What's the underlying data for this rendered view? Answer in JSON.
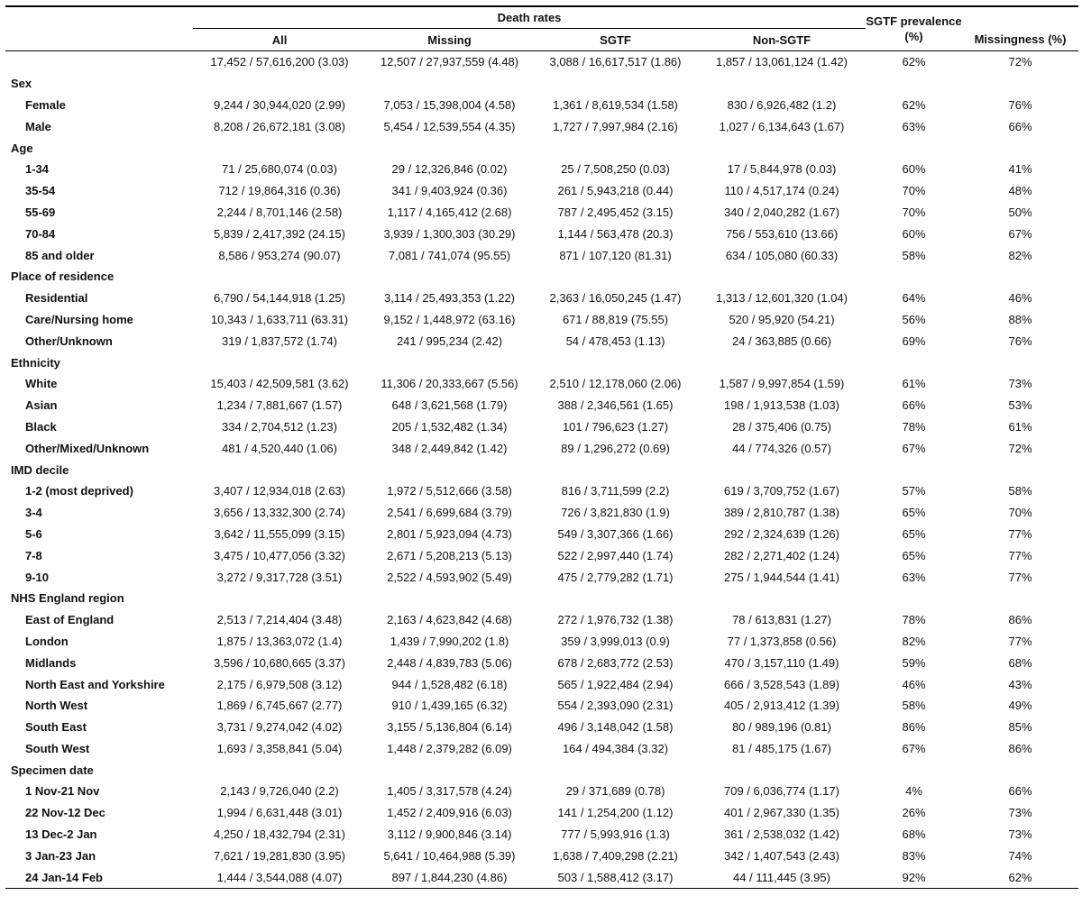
{
  "table": {
    "group_header": "Death rates",
    "columns": [
      "All",
      "Missing",
      "SGTF",
      "Non-SGTF",
      "SGTF prevalence (%)",
      "Missingness (%)"
    ],
    "total": [
      "17,452 / 57,616,200 (3.03)",
      "12,507 / 27,937,559 (4.48)",
      "3,088 / 16,617,517 (1.86)",
      "1,857 / 13,061,124 (1.42)",
      "62%",
      "72%"
    ],
    "sections": [
      {
        "title": "Sex",
        "rows": [
          {
            "label": "Female",
            "cells": [
              "9,244 / 30,944,020 (2.99)",
              "7,053 / 15,398,004 (4.58)",
              "1,361 / 8,619,534 (1.58)",
              "830 / 6,926,482 (1.2)",
              "62%",
              "76%"
            ]
          },
          {
            "label": "Male",
            "cells": [
              "8,208 / 26,672,181 (3.08)",
              "5,454 / 12,539,554 (4.35)",
              "1,727 / 7,997,984 (2.16)",
              "1,027 / 6,134,643 (1.67)",
              "63%",
              "66%"
            ]
          }
        ]
      },
      {
        "title": "Age",
        "rows": [
          {
            "label": "1-34",
            "cells": [
              "71 / 25,680,074 (0.03)",
              "29 / 12,326,846 (0.02)",
              "25 / 7,508,250 (0.03)",
              "17 / 5,844,978 (0.03)",
              "60%",
              "41%"
            ]
          },
          {
            "label": "35-54",
            "cells": [
              "712 / 19,864,316 (0.36)",
              "341 / 9,403,924 (0.36)",
              "261 / 5,943,218 (0.44)",
              "110 / 4,517,174 (0.24)",
              "70%",
              "48%"
            ]
          },
          {
            "label": "55-69",
            "cells": [
              "2,244 / 8,701,146 (2.58)",
              "1,117 / 4,165,412 (2.68)",
              "787 / 2,495,452 (3.15)",
              "340 / 2,040,282 (1.67)",
              "70%",
              "50%"
            ]
          },
          {
            "label": "70-84",
            "cells": [
              "5,839 / 2,417,392 (24.15)",
              "3,939 / 1,300,303 (30.29)",
              "1,144 / 563,478 (20.3)",
              "756 / 553,610 (13.66)",
              "60%",
              "67%"
            ]
          },
          {
            "label": "85 and older",
            "cells": [
              "8,586 / 953,274 (90.07)",
              "7,081 / 741,074 (95.55)",
              "871 / 107,120 (81.31)",
              "634 / 105,080 (60.33)",
              "58%",
              "82%"
            ]
          }
        ]
      },
      {
        "title": "Place of residence",
        "rows": [
          {
            "label": "Residential",
            "cells": [
              "6,790 / 54,144,918 (1.25)",
              "3,114 / 25,493,353 (1.22)",
              "2,363 / 16,050,245 (1.47)",
              "1,313 / 12,601,320 (1.04)",
              "64%",
              "46%"
            ]
          },
          {
            "label": "Care/Nursing home",
            "cells": [
              "10,343 / 1,633,711 (63.31)",
              "9,152 / 1,448,972 (63.16)",
              "671 / 88,819 (75.55)",
              "520 / 95,920 (54.21)",
              "56%",
              "88%"
            ]
          },
          {
            "label": "Other/Unknown",
            "cells": [
              "319 / 1,837,572 (1.74)",
              "241 / 995,234 (2.42)",
              "54 / 478,453 (1.13)",
              "24 / 363,885 (0.66)",
              "69%",
              "76%"
            ]
          }
        ]
      },
      {
        "title": "Ethnicity",
        "rows": [
          {
            "label": "White",
            "cells": [
              "15,403 / 42,509,581 (3.62)",
              "11,306 / 20,333,667 (5.56)",
              "2,510 / 12,178,060 (2.06)",
              "1,587 / 9,997,854 (1.59)",
              "61%",
              "73%"
            ]
          },
          {
            "label": "Asian",
            "cells": [
              "1,234 / 7,881,667 (1.57)",
              "648 / 3,621,568 (1.79)",
              "388 / 2,346,561 (1.65)",
              "198 / 1,913,538 (1.03)",
              "66%",
              "53%"
            ]
          },
          {
            "label": "Black",
            "cells": [
              "334 / 2,704,512 (1.23)",
              "205 / 1,532,482 (1.34)",
              "101 / 796,623 (1.27)",
              "28 / 375,406 (0.75)",
              "78%",
              "61%"
            ]
          },
          {
            "label": "Other/Mixed/Unknown",
            "cells": [
              "481 / 4,520,440 (1.06)",
              "348 / 2,449,842 (1.42)",
              "89 / 1,296,272 (0.69)",
              "44 / 774,326 (0.57)",
              "67%",
              "72%"
            ]
          }
        ]
      },
      {
        "title": "IMD decile",
        "rows": [
          {
            "label": "1-2 (most deprived)",
            "cells": [
              "3,407 / 12,934,018 (2.63)",
              "1,972 / 5,512,666 (3.58)",
              "816 / 3,711,599 (2.2)",
              "619 / 3,709,752 (1.67)",
              "57%",
              "58%"
            ]
          },
          {
            "label": "3-4",
            "cells": [
              "3,656 / 13,332,300 (2.74)",
              "2,541 / 6,699,684 (3.79)",
              "726 / 3,821,830 (1.9)",
              "389 / 2,810,787 (1.38)",
              "65%",
              "70%"
            ]
          },
          {
            "label": "5-6",
            "cells": [
              "3,642 / 11,555,099 (3.15)",
              "2,801 / 5,923,094 (4.73)",
              "549 / 3,307,366 (1.66)",
              "292 / 2,324,639 (1.26)",
              "65%",
              "77%"
            ]
          },
          {
            "label": "7-8",
            "cells": [
              "3,475 / 10,477,056 (3.32)",
              "2,671 / 5,208,213 (5.13)",
              "522 / 2,997,440 (1.74)",
              "282 / 2,271,402 (1.24)",
              "65%",
              "77%"
            ]
          },
          {
            "label": "9-10",
            "cells": [
              "3,272 / 9,317,728 (3.51)",
              "2,522 / 4,593,902 (5.49)",
              "475 / 2,779,282 (1.71)",
              "275 / 1,944,544 (1.41)",
              "63%",
              "77%"
            ]
          }
        ]
      },
      {
        "title": "NHS England region",
        "rows": [
          {
            "label": "East of England",
            "cells": [
              "2,513 / 7,214,404 (3.48)",
              "2,163 / 4,623,842 (4.68)",
              "272 / 1,976,732 (1.38)",
              "78 / 613,831 (1.27)",
              "78%",
              "86%"
            ]
          },
          {
            "label": "London",
            "cells": [
              "1,875 / 13,363,072 (1.4)",
              "1,439 / 7,990,202 (1.8)",
              "359 / 3,999,013 (0.9)",
              "77 / 1,373,858 (0.56)",
              "82%",
              "77%"
            ]
          },
          {
            "label": "Midlands",
            "cells": [
              "3,596 / 10,680,665 (3.37)",
              "2,448 / 4,839,783 (5.06)",
              "678 / 2,683,772 (2.53)",
              "470 / 3,157,110 (1.49)",
              "59%",
              "68%"
            ]
          },
          {
            "label": "North East and Yorkshire",
            "cells": [
              "2,175 / 6,979,508 (3.12)",
              "944 / 1,528,482 (6.18)",
              "565 / 1,922,484 (2.94)",
              "666 / 3,528,543 (1.89)",
              "46%",
              "43%"
            ]
          },
          {
            "label": "North West",
            "cells": [
              "1,869 / 6,745,667 (2.77)",
              "910 / 1,439,165 (6.32)",
              "554 / 2,393,090 (2.31)",
              "405 / 2,913,412 (1.39)",
              "58%",
              "49%"
            ]
          },
          {
            "label": "South East",
            "cells": [
              "3,731 / 9,274,042 (4.02)",
              "3,155 / 5,136,804 (6.14)",
              "496 / 3,148,042 (1.58)",
              "80 / 989,196 (0.81)",
              "86%",
              "85%"
            ]
          },
          {
            "label": "South West",
            "cells": [
              "1,693 / 3,358,841 (5.04)",
              "1,448 / 2,379,282 (6.09)",
              "164 / 494,384 (3.32)",
              "81 / 485,175 (1.67)",
              "67%",
              "86%"
            ]
          }
        ]
      },
      {
        "title": "Specimen date",
        "rows": [
          {
            "label": "1 Nov-21 Nov",
            "cells": [
              "2,143 / 9,726,040 (2.2)",
              "1,405 / 3,317,578 (4.24)",
              "29 / 371,689 (0.78)",
              "709 / 6,036,774 (1.17)",
              "4%",
              "66%"
            ]
          },
          {
            "label": "22 Nov-12 Dec",
            "cells": [
              "1,994 / 6,631,448 (3.01)",
              "1,452 / 2,409,916 (6.03)",
              "141 / 1,254,200 (1.12)",
              "401 / 2,967,330 (1.35)",
              "26%",
              "73%"
            ]
          },
          {
            "label": "13 Dec-2 Jan",
            "cells": [
              "4,250 / 18,432,794 (2.31)",
              "3,112 / 9,900,846 (3.14)",
              "777 / 5,993,916 (1.3)",
              "361 / 2,538,032 (1.42)",
              "68%",
              "73%"
            ]
          },
          {
            "label": "3 Jan-23 Jan",
            "cells": [
              "7,621 / 19,281,830 (3.95)",
              "5,641 / 10,464,988 (5.39)",
              "1,638 / 7,409,298 (2.21)",
              "342 / 1,407,543 (2.43)",
              "83%",
              "74%"
            ]
          },
          {
            "label": "24 Jan-14 Feb",
            "cells": [
              "1,444 / 3,544,088 (4.07)",
              "897 / 1,844,230 (4.86)",
              "503 / 1,588,412 (3.17)",
              "44 / 111,445 (3.95)",
              "92%",
              "62%"
            ]
          }
        ]
      }
    ]
  }
}
